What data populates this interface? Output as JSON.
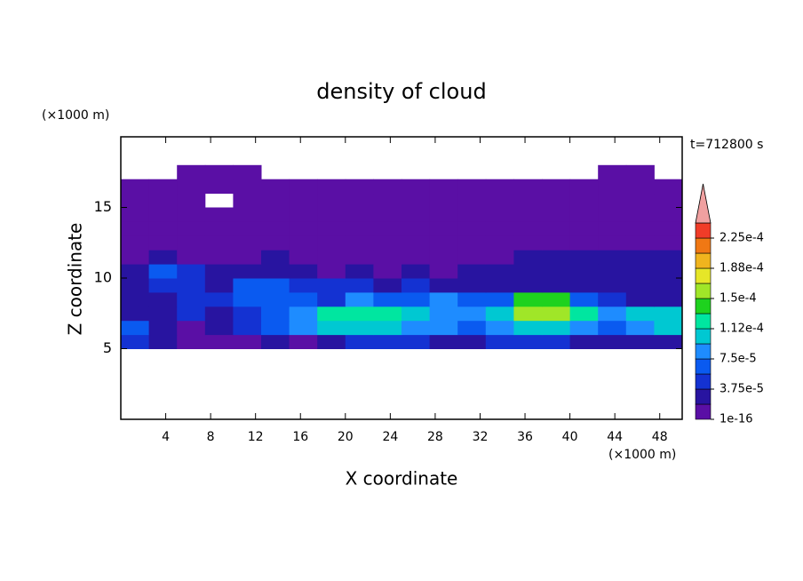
{
  "chart_data": {
    "type": "contour",
    "title": "density of cloud",
    "xlabel": "X coordinate",
    "ylabel": "Z coordinate",
    "x_unit": "(×1000 m)",
    "y_unit": "(×1000 m)",
    "time_label": "t=712800 s",
    "xlim": [
      0,
      50
    ],
    "ylim": [
      0,
      20
    ],
    "xticks": [
      4,
      8,
      12,
      16,
      20,
      24,
      28,
      32,
      36,
      40,
      44,
      48
    ],
    "yticks": [
      5,
      10,
      15
    ],
    "x_edges": [
      0,
      2.5,
      5,
      7.5,
      10,
      12.5,
      15,
      17.5,
      20,
      22.5,
      25,
      27.5,
      30,
      32.5,
      35,
      37.5,
      40,
      42.5,
      45,
      47.5,
      50
    ],
    "y_edges": [
      5,
      6,
      7,
      8,
      9,
      10,
      11,
      12,
      13,
      14,
      15,
      16,
      17,
      18
    ],
    "z": [
      [
        4.5e-05,
        2.5e-05,
        1e-06,
        1e-06,
        1e-06,
        2.5e-05,
        1e-06,
        2.5e-05,
        4.5e-05,
        4.5e-05,
        4.5e-05,
        2.5e-05,
        2.5e-05,
        4.5e-05,
        4.5e-05,
        4.5e-05,
        2.5e-05,
        2.5e-05,
        2.5e-05,
        2.5e-05
      ],
      [
        6.5e-05,
        2.5e-05,
        1e-06,
        2.5e-05,
        4.5e-05,
        6.5e-05,
        8.5e-05,
        0.000105,
        0.000105,
        0.000105,
        8.5e-05,
        8.5e-05,
        6.5e-05,
        8.5e-05,
        0.000105,
        0.000105,
        8.5e-05,
        6.5e-05,
        8.5e-05,
        0.000105
      ],
      [
        2.5e-05,
        2.5e-05,
        4.5e-05,
        2.5e-05,
        4.5e-05,
        6.5e-05,
        8.5e-05,
        0.00012,
        0.00012,
        0.00012,
        0.000105,
        8.5e-05,
        8.5e-05,
        0.000105,
        0.00016,
        0.00016,
        0.00012,
        8.5e-05,
        0.000105,
        0.000105
      ],
      [
        2.5e-05,
        2.5e-05,
        4.5e-05,
        4.5e-05,
        6.5e-05,
        6.5e-05,
        6.5e-05,
        4.5e-05,
        8.5e-05,
        6.5e-05,
        6.5e-05,
        8.5e-05,
        6.5e-05,
        6.5e-05,
        0.00014,
        0.00014,
        6.5e-05,
        4.5e-05,
        2.5e-05,
        2.5e-05
      ],
      [
        2.5e-05,
        4.5e-05,
        4.5e-05,
        2.5e-05,
        6.5e-05,
        6.5e-05,
        4.5e-05,
        4.5e-05,
        4.5e-05,
        2.5e-05,
        4.5e-05,
        2.5e-05,
        2.5e-05,
        2.5e-05,
        2.5e-05,
        2.5e-05,
        2.5e-05,
        2.5e-05,
        2.5e-05,
        2.5e-05
      ],
      [
        2.5e-05,
        6.5e-05,
        4.5e-05,
        2.5e-05,
        2.5e-05,
        2.5e-05,
        2.5e-05,
        1e-06,
        2.5e-05,
        1e-06,
        2.5e-05,
        1e-06,
        2.5e-05,
        2.5e-05,
        2.5e-05,
        2.5e-05,
        2.5e-05,
        2.5e-05,
        2.5e-05,
        2.5e-05
      ],
      [
        1e-06,
        2.5e-05,
        1e-06,
        1e-06,
        1e-06,
        2.5e-05,
        1e-06,
        1e-06,
        1e-06,
        1e-06,
        1e-06,
        1e-06,
        1e-06,
        1e-06,
        2.5e-05,
        2.5e-05,
        2.5e-05,
        2.5e-05,
        2.5e-05,
        2.5e-05
      ],
      [
        1e-06,
        1e-06,
        1e-06,
        1e-06,
        1e-06,
        1e-06,
        1e-06,
        1e-06,
        1e-06,
        1e-06,
        1e-06,
        1e-06,
        1e-06,
        1e-06,
        1e-06,
        1e-06,
        1e-06,
        1e-06,
        1e-06,
        1e-06
      ],
      [
        1e-06,
        1e-06,
        1e-06,
        1e-06,
        1e-06,
        1e-06,
        1e-06,
        1e-06,
        1e-06,
        1e-06,
        1e-06,
        1e-06,
        1e-06,
        1e-06,
        1e-06,
        1e-06,
        1e-06,
        1e-06,
        1e-06,
        1e-06
      ],
      [
        1e-06,
        1e-06,
        1e-06,
        1e-06,
        1e-06,
        1e-06,
        1e-06,
        1e-06,
        1e-06,
        1e-06,
        1e-06,
        1e-06,
        1e-06,
        1e-06,
        1e-06,
        1e-06,
        1e-06,
        1e-06,
        1e-06,
        1e-06
      ],
      [
        1e-06,
        1e-06,
        1e-06,
        null,
        1e-06,
        1e-06,
        1e-06,
        1e-06,
        1e-06,
        1e-06,
        1e-06,
        1e-06,
        1e-06,
        1e-06,
        1e-06,
        1e-06,
        1e-06,
        1e-06,
        1e-06,
        1e-06
      ],
      [
        1e-06,
        1e-06,
        1e-06,
        1e-06,
        1e-06,
        1e-06,
        1e-06,
        1e-06,
        1e-06,
        1e-06,
        1e-06,
        1e-06,
        1e-06,
        1e-06,
        1e-06,
        1e-06,
        1e-06,
        1e-06,
        1e-06,
        1e-06
      ],
      [
        null,
        null,
        1e-06,
        1e-06,
        1e-06,
        null,
        null,
        null,
        null,
        null,
        null,
        null,
        null,
        null,
        null,
        null,
        null,
        1e-06,
        1e-06,
        null
      ]
    ],
    "levels": [
      1e-16,
      1.875e-05,
      3.75e-05,
      5.625e-05,
      7.5e-05,
      9.375e-05,
      0.0001125,
      0.00013125,
      0.00015,
      0.00016875,
      0.0001875,
      0.00020625,
      0.000225,
      0.00024375
    ],
    "colors": [
      "#5a0fa5",
      "#2814a0",
      "#1432d2",
      "#0a5af0",
      "#1e8cff",
      "#00c8d2",
      "#00e6a0",
      "#1ed21e",
      "#a0e628",
      "#e6e628",
      "#f0b41e",
      "#f07814",
      "#f03c28"
    ],
    "extend_color": "#f0a0a0",
    "colorbar_ticks": [
      {
        "value": 1e-16,
        "label": "1e-16"
      },
      {
        "value": 3.75e-05,
        "label": "3.75e-5"
      },
      {
        "value": 7.5e-05,
        "label": "7.5e-5"
      },
      {
        "value": 0.0001125,
        "label": "1.12e-4"
      },
      {
        "value": 0.00015,
        "label": "1.5e-4"
      },
      {
        "value": 0.0001875,
        "label": "1.88e-4"
      },
      {
        "value": 0.000225,
        "label": "2.25e-4"
      }
    ]
  }
}
